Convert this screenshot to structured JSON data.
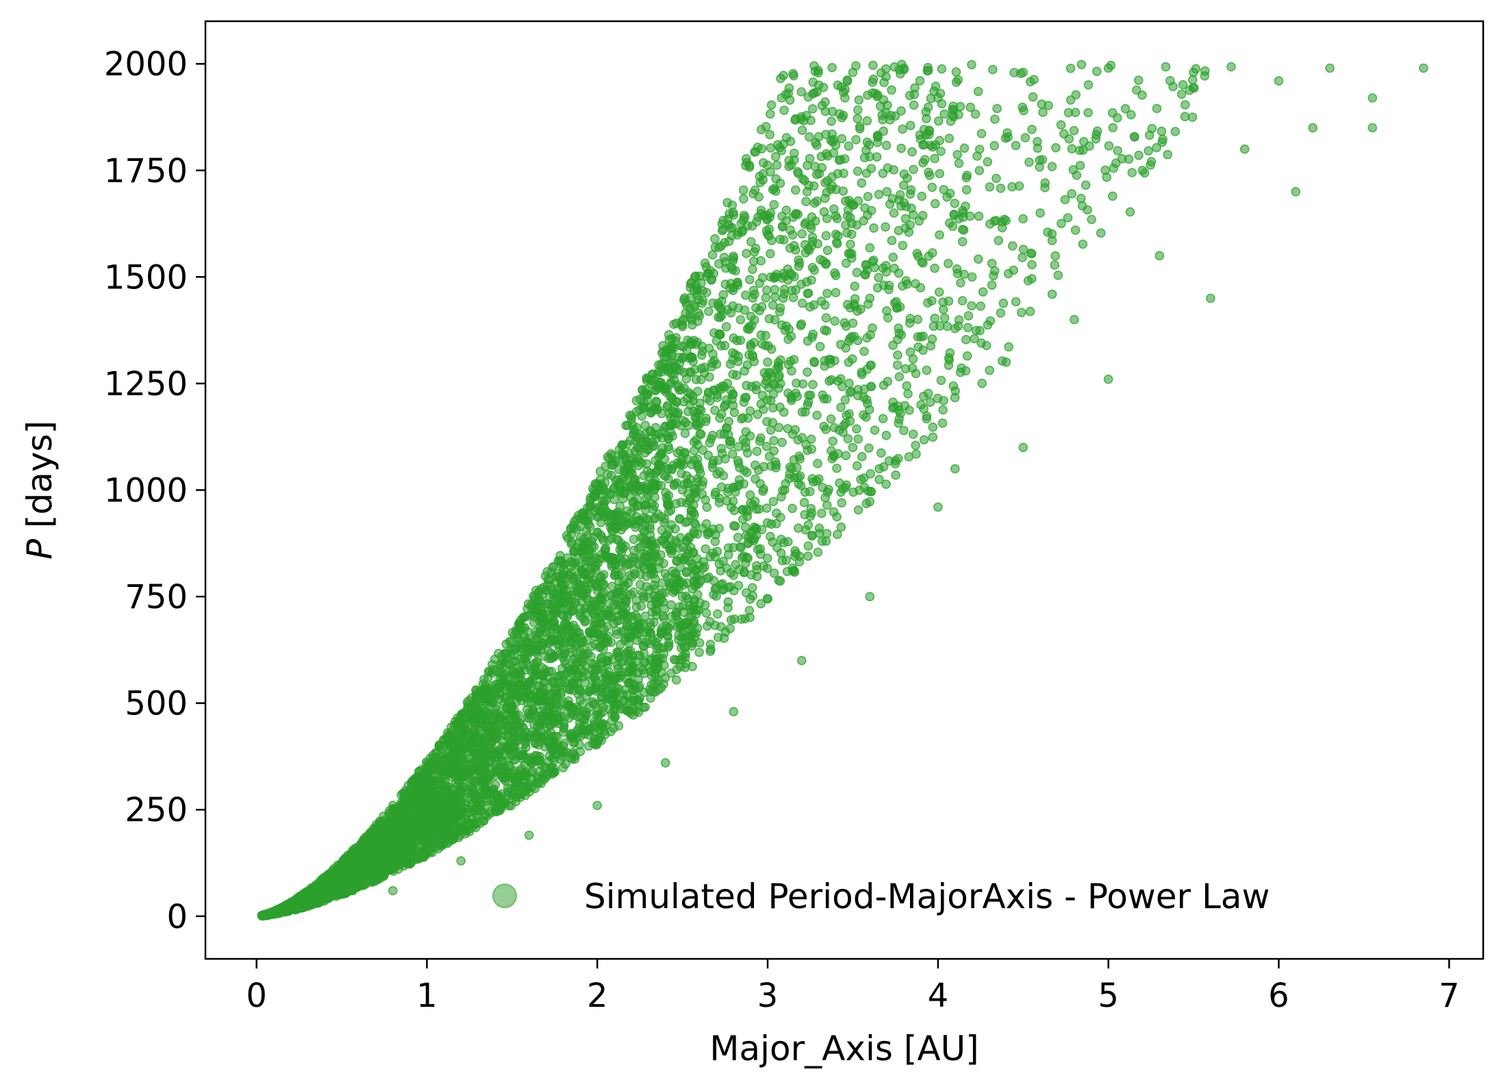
{
  "chart_data": {
    "type": "scatter",
    "title": "",
    "xlabel": "Major_Axis [AU]",
    "ylabel_var": "P",
    "ylabel_unit": " [days]",
    "xlim": [
      -0.3,
      7.2
    ],
    "ylim": [
      -100,
      2100
    ],
    "xticks": [
      0,
      1,
      2,
      3,
      4,
      5,
      6,
      7
    ],
    "xtick_labels": [
      "0",
      "1",
      "2",
      "3",
      "4",
      "5",
      "6",
      "7"
    ],
    "yticks": [
      0,
      250,
      500,
      750,
      1000,
      1250,
      1500,
      1750,
      2000
    ],
    "ytick_labels": [
      "0",
      "250",
      "500",
      "750",
      "1000",
      "1250",
      "1500",
      "1750",
      "2000"
    ],
    "grid": false,
    "legend": {
      "position": "lower-right",
      "entries": [
        "Simulated Period-MajorAxis - Power Law"
      ]
    },
    "series": [
      {
        "name": "Simulated Period-MajorAxis - Power Law",
        "color": "#2ca02c",
        "alpha": 0.55,
        "relation": "P = k * a^1.5, k from 142 to 365 days/AU^1.5, P up to 2000",
        "points": [
          [
            0.05,
            2
          ],
          [
            0.1,
            7
          ],
          [
            0.2,
            22
          ],
          [
            0.3,
            38
          ],
          [
            0.5,
            100
          ],
          [
            0.7,
            160
          ],
          [
            1.0,
            290
          ],
          [
            1.3,
            420
          ],
          [
            1.5,
            520
          ],
          [
            1.8,
            760
          ],
          [
            2.0,
            900
          ],
          [
            2.4,
            1150
          ],
          [
            2.7,
            1350
          ],
          [
            3.0,
            1600
          ],
          [
            3.3,
            1950
          ],
          [
            3.5,
            1980
          ],
          [
            3.8,
            1990
          ],
          [
            4.0,
            1920
          ],
          [
            4.5,
            1980
          ],
          [
            5.0,
            1990
          ],
          [
            5.5,
            1980
          ],
          [
            6.0,
            1960
          ],
          [
            6.3,
            1990
          ],
          [
            6.55,
            1920
          ],
          [
            6.85,
            1990
          ],
          [
            6.55,
            1850
          ],
          [
            6.1,
            1700
          ],
          [
            5.6,
            1450
          ],
          [
            5.0,
            1260
          ],
          [
            4.5,
            1100
          ],
          [
            4.0,
            960
          ],
          [
            3.6,
            750
          ],
          [
            3.2,
            600
          ],
          [
            2.8,
            480
          ],
          [
            2.4,
            360
          ],
          [
            2.0,
            260
          ],
          [
            1.6,
            190
          ],
          [
            1.2,
            130
          ],
          [
            0.8,
            60
          ],
          [
            3.4,
            1600
          ],
          [
            4.2,
            1500
          ],
          [
            5.2,
            1750
          ],
          [
            4.8,
            1400
          ],
          [
            3.9,
            1200
          ],
          [
            3.1,
            1000
          ],
          [
            2.6,
            800
          ],
          [
            2.2,
            600
          ],
          [
            1.8,
            400
          ],
          [
            4.4,
            1300
          ],
          [
            5.8,
            1800
          ],
          [
            6.2,
            1850
          ],
          [
            3.7,
            1700
          ],
          [
            4.6,
            1650
          ],
          [
            5.3,
            1550
          ],
          [
            2.9,
            900
          ],
          [
            3.5,
            1100
          ],
          [
            4.1,
            1050
          ],
          [
            2.5,
            1000
          ],
          [
            3.0,
            1300
          ],
          [
            3.6,
            1450
          ]
        ]
      }
    ]
  }
}
